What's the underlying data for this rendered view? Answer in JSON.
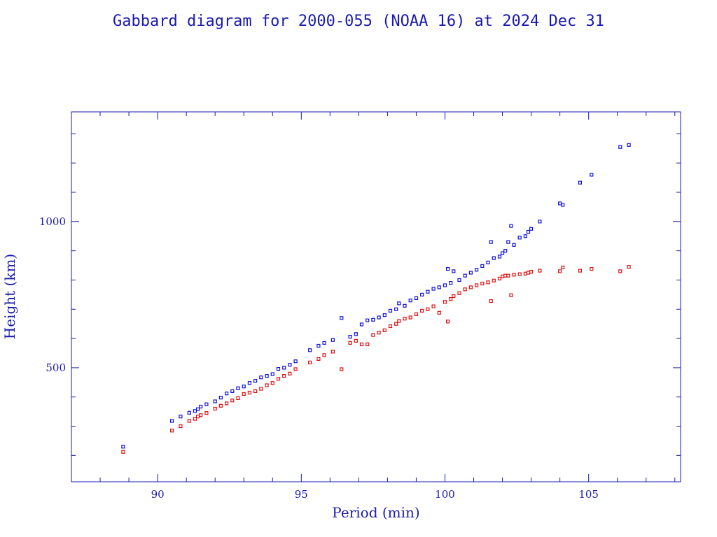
{
  "chart_data": {
    "type": "scatter",
    "title": "Gabbard diagram for 2000-055 (NOAA 16) at 2024 Dec 31",
    "xlabel": "Period (min)",
    "ylabel": "Height (km)",
    "xlim": [
      87,
      108.2
    ],
    "ylim": [
      110,
      1375
    ],
    "x_ticks": [
      90,
      95,
      100,
      105
    ],
    "y_ticks": [
      500,
      1000
    ],
    "grid": false,
    "legend": "none",
    "colors": {
      "axis": "#1a1ab0",
      "apogee": "#1010e0",
      "perigee": "#e01010"
    },
    "series": [
      {
        "role": "apogee",
        "points": [
          [
            88.8,
            230
          ],
          [
            90.5,
            318
          ],
          [
            90.8,
            333
          ],
          [
            91.1,
            346
          ],
          [
            91.3,
            352
          ],
          [
            91.4,
            358
          ],
          [
            91.5,
            367
          ],
          [
            91.7,
            375
          ],
          [
            92.0,
            385
          ],
          [
            92.2,
            398
          ],
          [
            92.4,
            412
          ],
          [
            92.6,
            420
          ],
          [
            92.8,
            430
          ],
          [
            93.0,
            436
          ],
          [
            93.2,
            448
          ],
          [
            93.4,
            455
          ],
          [
            93.6,
            467
          ],
          [
            93.8,
            472
          ],
          [
            94.0,
            478
          ],
          [
            94.2,
            496
          ],
          [
            94.4,
            500
          ],
          [
            94.6,
            510
          ],
          [
            94.8,
            522
          ],
          [
            95.3,
            560
          ],
          [
            95.6,
            575
          ],
          [
            95.8,
            585
          ],
          [
            96.1,
            595
          ],
          [
            96.4,
            670
          ],
          [
            96.7,
            606
          ],
          [
            96.9,
            615
          ],
          [
            97.1,
            648
          ],
          [
            97.3,
            662
          ],
          [
            97.5,
            664
          ],
          [
            97.7,
            672
          ],
          [
            97.9,
            680
          ],
          [
            98.1,
            695
          ],
          [
            98.3,
            700
          ],
          [
            98.4,
            720
          ],
          [
            98.6,
            712
          ],
          [
            98.8,
            730
          ],
          [
            99.0,
            738
          ],
          [
            99.2,
            750
          ],
          [
            99.4,
            760
          ],
          [
            99.6,
            770
          ],
          [
            99.8,
            775
          ],
          [
            100.0,
            782
          ],
          [
            100.1,
            838
          ],
          [
            100.2,
            790
          ],
          [
            100.3,
            830
          ],
          [
            100.5,
            800
          ],
          [
            100.7,
            815
          ],
          [
            100.9,
            825
          ],
          [
            101.1,
            835
          ],
          [
            101.3,
            848
          ],
          [
            101.5,
            860
          ],
          [
            101.6,
            930
          ],
          [
            101.7,
            875
          ],
          [
            101.9,
            880
          ],
          [
            102.0,
            892
          ],
          [
            102.1,
            900
          ],
          [
            102.2,
            930
          ],
          [
            102.3,
            985
          ],
          [
            102.4,
            920
          ],
          [
            102.6,
            945
          ],
          [
            102.8,
            950
          ],
          [
            102.9,
            965
          ],
          [
            103.0,
            975
          ],
          [
            103.3,
            1000
          ],
          [
            104.0,
            1062
          ],
          [
            104.1,
            1057
          ],
          [
            104.7,
            1133
          ],
          [
            105.1,
            1160
          ],
          [
            106.1,
            1255
          ],
          [
            106.4,
            1262
          ]
        ]
      },
      {
        "role": "perigee",
        "points": [
          [
            88.8,
            212
          ],
          [
            90.5,
            285
          ],
          [
            90.8,
            300
          ],
          [
            91.1,
            318
          ],
          [
            91.3,
            325
          ],
          [
            91.4,
            333
          ],
          [
            91.5,
            338
          ],
          [
            91.7,
            345
          ],
          [
            92.0,
            360
          ],
          [
            92.2,
            370
          ],
          [
            92.4,
            378
          ],
          [
            92.6,
            388
          ],
          [
            92.8,
            396
          ],
          [
            93.0,
            410
          ],
          [
            93.2,
            415
          ],
          [
            93.4,
            420
          ],
          [
            93.6,
            428
          ],
          [
            93.8,
            440
          ],
          [
            94.0,
            448
          ],
          [
            94.2,
            462
          ],
          [
            94.4,
            472
          ],
          [
            94.6,
            480
          ],
          [
            94.8,
            495
          ],
          [
            95.3,
            518
          ],
          [
            95.6,
            530
          ],
          [
            95.8,
            543
          ],
          [
            96.1,
            555
          ],
          [
            96.4,
            495
          ],
          [
            96.7,
            585
          ],
          [
            96.9,
            592
          ],
          [
            97.1,
            580
          ],
          [
            97.3,
            580
          ],
          [
            97.5,
            612
          ],
          [
            97.7,
            620
          ],
          [
            97.9,
            628
          ],
          [
            98.1,
            642
          ],
          [
            98.3,
            650
          ],
          [
            98.4,
            660
          ],
          [
            98.6,
            668
          ],
          [
            98.8,
            672
          ],
          [
            99.0,
            683
          ],
          [
            99.2,
            695
          ],
          [
            99.4,
            700
          ],
          [
            99.6,
            710
          ],
          [
            99.8,
            688
          ],
          [
            100.0,
            725
          ],
          [
            100.1,
            658
          ],
          [
            100.2,
            735
          ],
          [
            100.3,
            745
          ],
          [
            100.5,
            755
          ],
          [
            100.7,
            768
          ],
          [
            100.9,
            775
          ],
          [
            101.1,
            782
          ],
          [
            101.3,
            788
          ],
          [
            101.5,
            792
          ],
          [
            101.6,
            728
          ],
          [
            101.7,
            798
          ],
          [
            101.9,
            805
          ],
          [
            102.0,
            812
          ],
          [
            102.1,
            815
          ],
          [
            102.2,
            815
          ],
          [
            102.3,
            748
          ],
          [
            102.4,
            818
          ],
          [
            102.6,
            820
          ],
          [
            102.8,
            822
          ],
          [
            102.9,
            825
          ],
          [
            103.0,
            828
          ],
          [
            103.3,
            832
          ],
          [
            104.0,
            830
          ],
          [
            104.1,
            843
          ],
          [
            104.7,
            832
          ],
          [
            105.1,
            838
          ],
          [
            106.1,
            830
          ],
          [
            106.4,
            845
          ]
        ]
      }
    ]
  }
}
